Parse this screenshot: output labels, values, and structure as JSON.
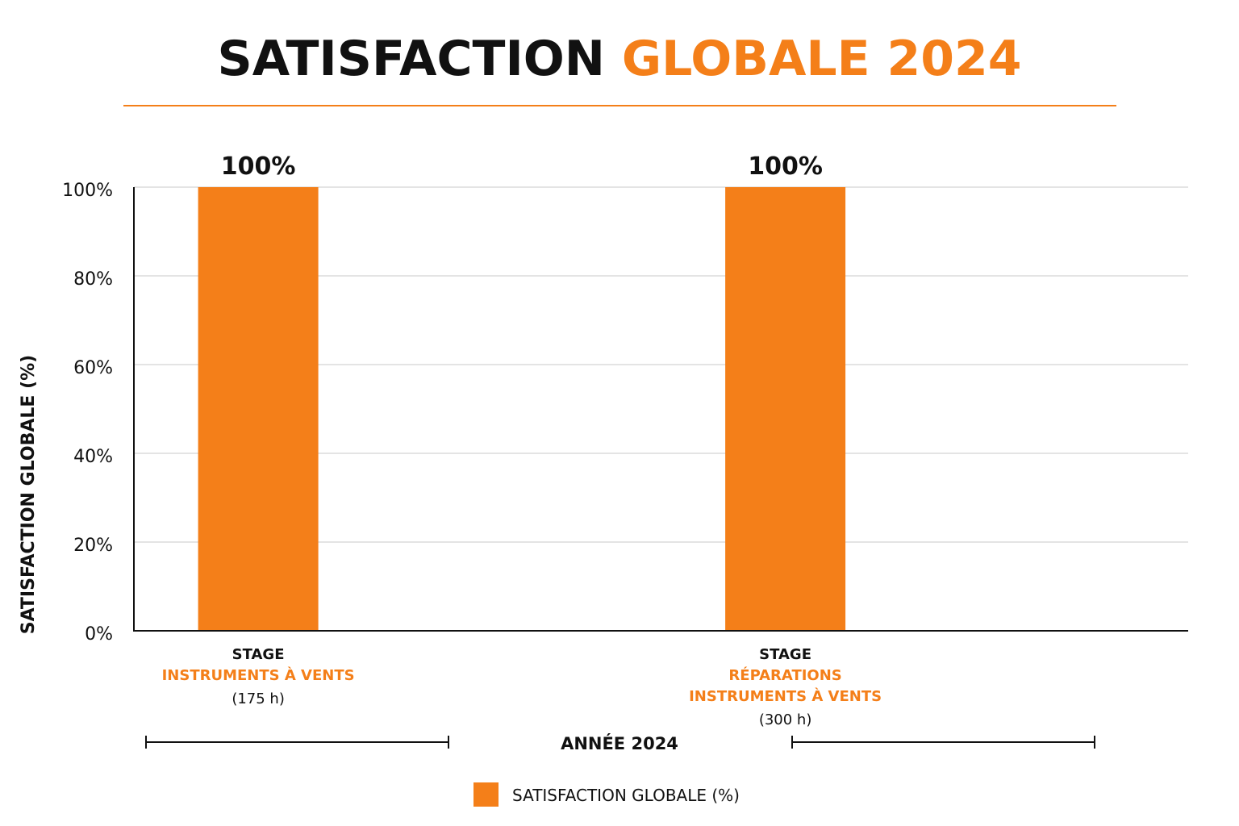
{
  "title": {
    "part1": "SATISFACTION",
    "part2": "GLOBALE 2024"
  },
  "colors": {
    "accent": "#F47F19",
    "text": "#111111",
    "grid": "#C8C8C8"
  },
  "chart_data": {
    "type": "bar",
    "title": "SATISFACTION GLOBALE 2024",
    "ylabel": "SATISFACTION GLOBALE (%)",
    "xlabel": "ANNÉE 2024",
    "ylim": [
      0,
      100
    ],
    "yticks": [
      "0%",
      "20%",
      "40%",
      "60%",
      "80%",
      "100%"
    ],
    "grid": true,
    "legend_position": "bottom",
    "categories": [
      {
        "line1": "STAGE",
        "name_lines": [
          "INSTRUMENTS À VENTS"
        ],
        "hours": "(175 h)"
      },
      {
        "line1": "STAGE",
        "name_lines": [
          "RÉPARATIONS",
          "INSTRUMENTS À VENTS"
        ],
        "hours": "(300 h)"
      }
    ],
    "series": [
      {
        "name": "SATISFACTION GLOBALE (%)",
        "values": [
          100,
          100
        ],
        "labels": [
          "100%",
          "100%"
        ]
      }
    ]
  }
}
